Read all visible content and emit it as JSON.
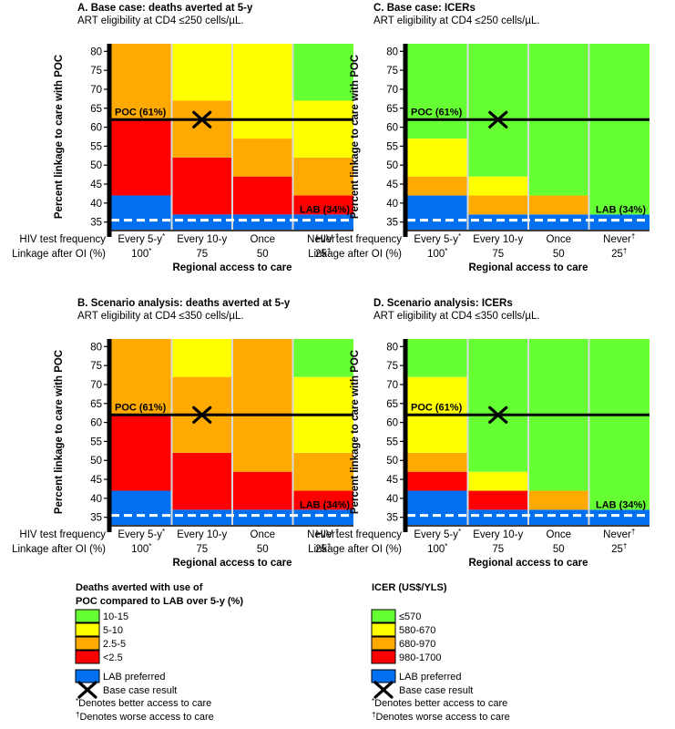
{
  "colors": {
    "green": "#66ff33",
    "yellow": "#ffff00",
    "orange": "#ffaa00",
    "red": "#ff0000",
    "blue": "#0070f0",
    "divider": "#d9d9d9",
    "dashed": "#ffffff",
    "axis": "#000000"
  },
  "shared": {
    "ylabel": "Percent linkage to care with POC",
    "row1_label": "HIV test frequency",
    "row2_label": "Linkage after OI (%)",
    "xlabel": "Regional access to care",
    "freq_labels": [
      "Every 5-y",
      "Every 10-y",
      "Once",
      "Never"
    ],
    "freq_marks": [
      "*",
      "",
      "",
      "†"
    ],
    "linkage_labels": [
      "100",
      "75",
      "50",
      "25"
    ],
    "linkage_marks": [
      "*",
      "",
      "",
      "†"
    ],
    "poc_label": "POC (61%)",
    "lab_label": "LAB (34%)"
  },
  "chart_data": [
    {
      "id": "A",
      "type": "heatmap",
      "title": "A. Base case: deaths averted at 5-y",
      "subtitle": "ART eligibility at CD4 ≤250 cells/µL.",
      "ylim": [
        33,
        82
      ],
      "yticks": [
        35,
        40,
        45,
        50,
        55,
        60,
        65,
        70,
        75,
        80
      ],
      "poc_line": 62,
      "lab_line": 35.5,
      "base_case": {
        "column": 1,
        "y": 62
      },
      "columns": [
        {
          "segments": [
            {
              "from": 33,
              "to": 42,
              "color": "blue"
            },
            {
              "from": 42,
              "to": 62,
              "color": "red"
            },
            {
              "from": 62,
              "to": 82,
              "color": "orange"
            }
          ]
        },
        {
          "segments": [
            {
              "from": 33,
              "to": 37,
              "color": "blue"
            },
            {
              "from": 37,
              "to": 52,
              "color": "red"
            },
            {
              "from": 52,
              "to": 67,
              "color": "orange"
            },
            {
              "from": 67,
              "to": 82,
              "color": "yellow"
            }
          ]
        },
        {
          "segments": [
            {
              "from": 33,
              "to": 37,
              "color": "blue"
            },
            {
              "from": 37,
              "to": 47,
              "color": "red"
            },
            {
              "from": 47,
              "to": 57,
              "color": "orange"
            },
            {
              "from": 57,
              "to": 82,
              "color": "yellow"
            }
          ]
        },
        {
          "segments": [
            {
              "from": 33,
              "to": 37,
              "color": "blue"
            },
            {
              "from": 37,
              "to": 42,
              "color": "red"
            },
            {
              "from": 42,
              "to": 52,
              "color": "orange"
            },
            {
              "from": 52,
              "to": 67,
              "color": "yellow"
            },
            {
              "from": 67,
              "to": 82,
              "color": "green"
            }
          ]
        }
      ],
      "lab_label_color": "#000000"
    },
    {
      "id": "C",
      "type": "heatmap",
      "title": "C. Base case: ICERs",
      "subtitle": "ART eligibility at CD4 ≤250 cells/µL.",
      "ylim": [
        33,
        82
      ],
      "yticks": [
        35,
        40,
        45,
        50,
        55,
        60,
        65,
        70,
        75,
        80
      ],
      "poc_line": 62,
      "lab_line": 35.5,
      "base_case": {
        "column": 1,
        "y": 62
      },
      "columns": [
        {
          "segments": [
            {
              "from": 33,
              "to": 42,
              "color": "blue"
            },
            {
              "from": 42,
              "to": 47,
              "color": "orange"
            },
            {
              "from": 47,
              "to": 57,
              "color": "yellow"
            },
            {
              "from": 57,
              "to": 82,
              "color": "green"
            }
          ]
        },
        {
          "segments": [
            {
              "from": 33,
              "to": 37,
              "color": "blue"
            },
            {
              "from": 37,
              "to": 42,
              "color": "orange"
            },
            {
              "from": 42,
              "to": 47,
              "color": "yellow"
            },
            {
              "from": 47,
              "to": 82,
              "color": "green"
            }
          ]
        },
        {
          "segments": [
            {
              "from": 33,
              "to": 37,
              "color": "blue"
            },
            {
              "from": 37,
              "to": 42,
              "color": "orange"
            },
            {
              "from": 42,
              "to": 82,
              "color": "green"
            }
          ]
        },
        {
          "segments": [
            {
              "from": 33,
              "to": 37,
              "color": "blue"
            },
            {
              "from": 37,
              "to": 82,
              "color": "green"
            }
          ]
        }
      ],
      "lab_label_color": "#000000"
    },
    {
      "id": "B",
      "type": "heatmap",
      "title": "B. Scenario analysis: deaths averted at 5-y",
      "subtitle": "ART eligibility at CD4 ≤350 cells/µL.",
      "ylim": [
        33,
        82
      ],
      "yticks": [
        35,
        40,
        45,
        50,
        55,
        60,
        65,
        70,
        75,
        80
      ],
      "poc_line": 62,
      "lab_line": 35.5,
      "base_case": {
        "column": 1,
        "y": 62
      },
      "columns": [
        {
          "segments": [
            {
              "from": 33,
              "to": 42,
              "color": "blue"
            },
            {
              "from": 42,
              "to": 62,
              "color": "red"
            },
            {
              "from": 62,
              "to": 82,
              "color": "orange"
            }
          ]
        },
        {
          "segments": [
            {
              "from": 33,
              "to": 37,
              "color": "blue"
            },
            {
              "from": 37,
              "to": 52,
              "color": "red"
            },
            {
              "from": 52,
              "to": 72,
              "color": "orange"
            },
            {
              "from": 72,
              "to": 82,
              "color": "yellow"
            }
          ]
        },
        {
          "segments": [
            {
              "from": 33,
              "to": 37,
              "color": "blue"
            },
            {
              "from": 37,
              "to": 47,
              "color": "red"
            },
            {
              "from": 47,
              "to": 82,
              "color": "orange"
            }
          ]
        },
        {
          "segments": [
            {
              "from": 33,
              "to": 37,
              "color": "blue"
            },
            {
              "from": 37,
              "to": 42,
              "color": "red"
            },
            {
              "from": 42,
              "to": 52,
              "color": "orange"
            },
            {
              "from": 52,
              "to": 72,
              "color": "yellow"
            },
            {
              "from": 72,
              "to": 82,
              "color": "green"
            }
          ]
        }
      ],
      "lab_label_color": "#000000"
    },
    {
      "id": "D",
      "type": "heatmap",
      "title": "D. Scenario analysis: ICERs",
      "subtitle": "ART eligibility at CD4 ≤350 cells/µL.",
      "ylim": [
        33,
        82
      ],
      "yticks": [
        35,
        40,
        45,
        50,
        55,
        60,
        65,
        70,
        75,
        80
      ],
      "poc_line": 62,
      "lab_line": 35.5,
      "base_case": {
        "column": 1,
        "y": 62
      },
      "columns": [
        {
          "segments": [
            {
              "from": 33,
              "to": 42,
              "color": "blue"
            },
            {
              "from": 42,
              "to": 47,
              "color": "red"
            },
            {
              "from": 47,
              "to": 52,
              "color": "orange"
            },
            {
              "from": 52,
              "to": 72,
              "color": "yellow"
            },
            {
              "from": 72,
              "to": 82,
              "color": "green"
            }
          ]
        },
        {
          "segments": [
            {
              "from": 33,
              "to": 37,
              "color": "blue"
            },
            {
              "from": 37,
              "to": 42,
              "color": "red"
            },
            {
              "from": 42,
              "to": 47,
              "color": "yellow"
            },
            {
              "from": 47,
              "to": 82,
              "color": "green"
            }
          ]
        },
        {
          "segments": [
            {
              "from": 33,
              "to": 37,
              "color": "blue"
            },
            {
              "from": 37,
              "to": 42,
              "color": "orange"
            },
            {
              "from": 42,
              "to": 82,
              "color": "green"
            }
          ]
        },
        {
          "segments": [
            {
              "from": 33,
              "to": 37,
              "color": "blue"
            },
            {
              "from": 37,
              "to": 82,
              "color": "green"
            }
          ]
        }
      ],
      "lab_label_color": "#000000"
    }
  ],
  "legends": [
    {
      "id": "deaths",
      "title_lines": [
        "Deaths averted with use of",
        "POC compared to LAB over 5-y (%)"
      ],
      "items": [
        {
          "label": "10-15",
          "color": "green"
        },
        {
          "label": "5-10",
          "color": "yellow"
        },
        {
          "label": "2.5-5",
          "color": "orange"
        },
        {
          "label": "<2.5",
          "color": "red"
        }
      ]
    },
    {
      "id": "icer",
      "title_lines": [
        "ICER (US$/YLS)"
      ],
      "items": [
        {
          "label": "≤570",
          "color": "green"
        },
        {
          "label": "580-670",
          "color": "yellow"
        },
        {
          "label": "680-970",
          "color": "orange"
        },
        {
          "label": "980-1700",
          "color": "red"
        }
      ]
    }
  ],
  "legend_notes": {
    "lab_preferred": "LAB preferred",
    "base_case": "Base case result",
    "better_mark": "*",
    "better": "Denotes better access to care",
    "worse_mark": "†",
    "worse": "Denotes worse access to care"
  }
}
